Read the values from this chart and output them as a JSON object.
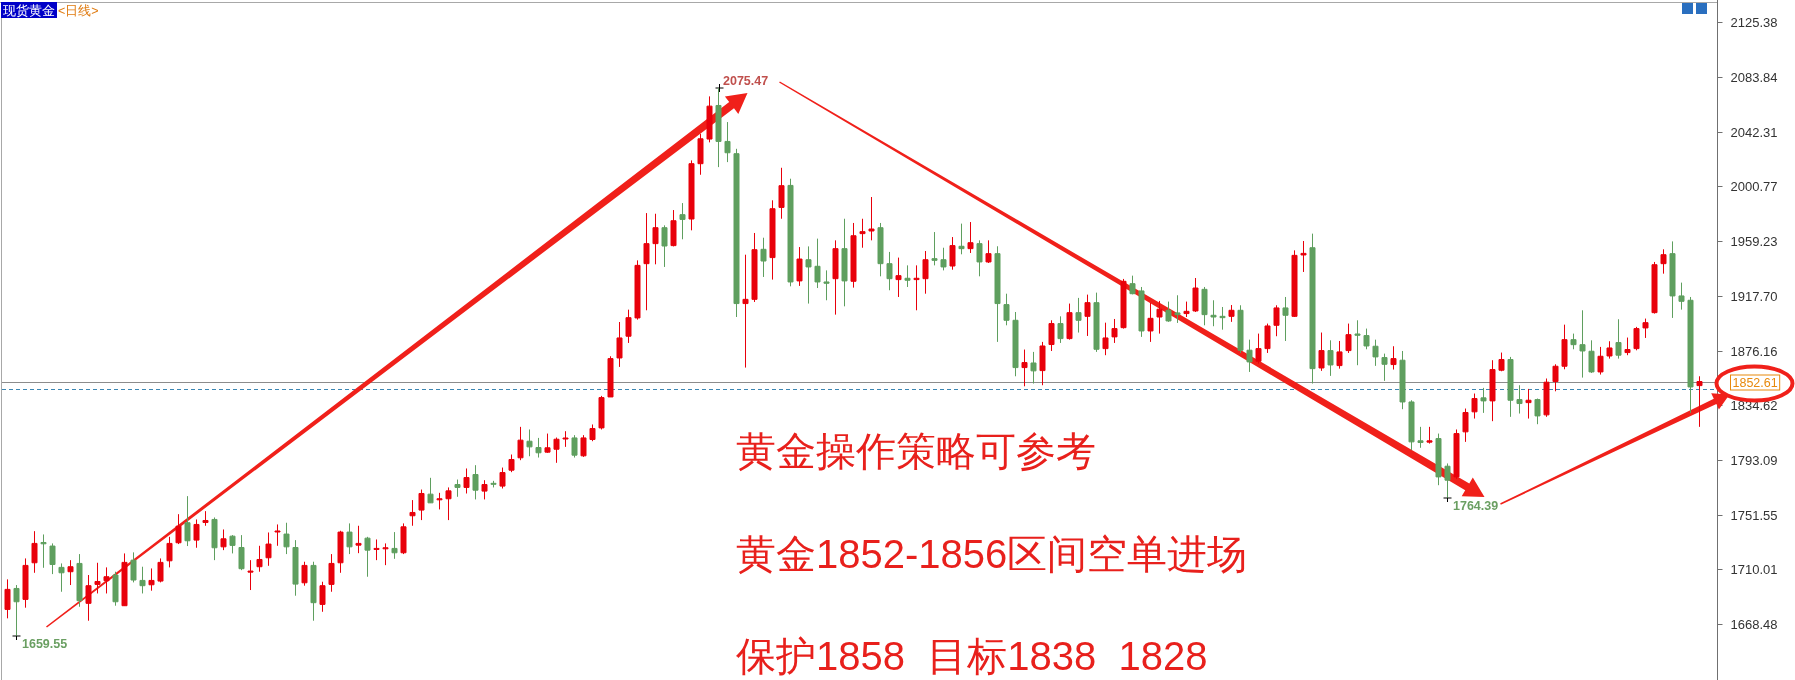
{
  "chart_data": {
    "type": "candlestick",
    "title": "现货黄金",
    "subtitle": "<日线>",
    "categories": [
      null,
      null,
      null,
      null,
      null,
      null,
      null,
      null,
      null,
      null,
      null,
      null,
      null,
      null,
      null,
      null,
      null,
      null,
      null,
      null,
      null,
      null,
      null,
      null,
      null,
      null,
      null,
      null,
      null,
      null,
      null,
      null,
      null,
      null,
      null,
      null,
      null,
      null,
      null,
      null,
      null,
      null,
      null,
      null,
      null,
      null,
      null,
      null,
      null,
      null,
      null,
      null,
      null,
      null,
      null,
      null,
      null,
      null,
      null,
      null,
      null,
      null,
      null,
      null,
      null,
      null,
      null,
      null,
      null,
      null,
      null,
      null,
      null,
      null,
      null,
      null,
      null,
      null,
      null,
      null,
      null,
      null,
      null,
      null,
      null,
      null,
      null,
      null,
      null,
      null,
      null,
      null,
      null,
      null,
      null,
      null,
      null,
      null,
      null,
      null,
      null,
      null,
      null,
      null,
      null,
      null,
      null,
      null,
      null,
      null,
      null,
      null,
      null,
      null,
      null,
      null,
      null,
      null,
      null,
      null,
      null,
      null,
      null,
      null,
      null,
      null,
      null,
      null,
      null,
      null,
      null,
      null,
      null,
      null,
      null,
      null,
      null,
      null,
      null,
      null,
      null,
      null,
      null,
      null,
      null,
      null,
      null,
      null,
      null,
      null,
      null,
      null,
      null,
      null,
      null,
      null,
      null,
      null,
      null,
      null,
      null,
      null,
      null,
      null,
      null,
      null,
      null,
      null,
      null,
      null,
      null,
      null,
      null,
      null,
      null,
      null,
      null,
      null,
      null,
      null,
      null,
      null,
      null,
      null,
      null,
      null,
      null,
      null,
      null
    ],
    "ohlc": [
      [
        1679.6,
        1702.4,
        1672.8,
        1694.8
      ],
      [
        1695.5,
        1698.1,
        1659.55,
        1685.4
      ],
      [
        1687.2,
        1718.3,
        1680.9,
        1713.0
      ],
      [
        1715.0,
        1739.0,
        1707.4,
        1729.7
      ],
      [
        1730.4,
        1736.5,
        1711.2,
        1729.4
      ],
      [
        1727.7,
        1729.7,
        1706.4,
        1713.7
      ],
      [
        1711.5,
        1714.5,
        1693.0,
        1707.4
      ],
      [
        1708.2,
        1717.0,
        1698.1,
        1712.0
      ],
      [
        1714.5,
        1721.6,
        1681.6,
        1686.2
      ],
      [
        1684.2,
        1705.7,
        1671.0,
        1697.6
      ],
      [
        1698.6,
        1715.0,
        1691.7,
        1700.8
      ],
      [
        1701.4,
        1711.5,
        1691.7,
        1704.4
      ],
      [
        1705.7,
        1708.2,
        1682.4,
        1685.4
      ],
      [
        1682.4,
        1722.1,
        1682.4,
        1715.3
      ],
      [
        1717.0,
        1722.9,
        1700.1,
        1701.9
      ],
      [
        1701.6,
        1712.0,
        1691.7,
        1697.6
      ],
      [
        1698.3,
        1710.7,
        1693.8,
        1701.6
      ],
      [
        1701.1,
        1718.3,
        1700.1,
        1715.3
      ],
      [
        1716.5,
        1734.7,
        1711.5,
        1729.7
      ],
      [
        1730.2,
        1751.9,
        1729.2,
        1742.8
      ],
      [
        1745.4,
        1765.6,
        1727.7,
        1731.7
      ],
      [
        1732.2,
        1747.9,
        1726.4,
        1744.1
      ],
      [
        1745.6,
        1754.2,
        1743.1,
        1747.1
      ],
      [
        1747.9,
        1749.4,
        1717.0,
        1726.4
      ],
      [
        1727.1,
        1740.3,
        1724.6,
        1733.2
      ],
      [
        1735.2,
        1736.0,
        1722.1,
        1728.2
      ],
      [
        1726.6,
        1736.0,
        1709.4,
        1710.5
      ],
      [
        1707.9,
        1717.0,
        1694.3,
        1708.7
      ],
      [
        1712.0,
        1727.9,
        1708.2,
        1717.5
      ],
      [
        1718.8,
        1738.0,
        1712.7,
        1729.2
      ],
      [
        1738.5,
        1744.1,
        1727.9,
        1739.0
      ],
      [
        1736.8,
        1745.4,
        1721.6,
        1727.1
      ],
      [
        1726.6,
        1732.2,
        1690.0,
        1698.8
      ],
      [
        1699.8,
        1715.8,
        1697.6,
        1713.0
      ],
      [
        1713.0,
        1715.8,
        1671.0,
        1684.7
      ],
      [
        1683.4,
        1700.6,
        1677.8,
        1697.6
      ],
      [
        1698.6,
        1721.6,
        1693.0,
        1714.5
      ],
      [
        1715.0,
        1739.3,
        1707.4,
        1738.3
      ],
      [
        1738.3,
        1744.9,
        1721.6,
        1727.1
      ],
      [
        1728.4,
        1743.1,
        1722.3,
        1729.7
      ],
      [
        1733.7,
        1734.7,
        1704.4,
        1724.6
      ],
      [
        1725.1,
        1732.7,
        1717.0,
        1725.9
      ],
      [
        1725.6,
        1729.7,
        1713.2,
        1726.4
      ],
      [
        1725.9,
        1738.3,
        1718.0,
        1722.6
      ],
      [
        1722.6,
        1744.9,
        1721.6,
        1742.3
      ],
      [
        1750.7,
        1762.6,
        1743.1,
        1753.2
      ],
      [
        1755.0,
        1770.6,
        1747.4,
        1767.6
      ],
      [
        1767.1,
        1779.5,
        1760.5,
        1760.5
      ],
      [
        1762.8,
        1768.1,
        1755.5,
        1763.6
      ],
      [
        1763.6,
        1772.2,
        1747.4,
        1769.6
      ],
      [
        1774.4,
        1778.2,
        1765.1,
        1772.2
      ],
      [
        1772.2,
        1786.6,
        1767.6,
        1779.7
      ],
      [
        1782.0,
        1789.1,
        1763.1,
        1770.1
      ],
      [
        1769.4,
        1777.7,
        1763.1,
        1774.4
      ],
      [
        1775.2,
        1777.2,
        1772.2,
        1774.7
      ],
      [
        1773.2,
        1787.3,
        1771.4,
        1783.5
      ],
      [
        1785.3,
        1797.2,
        1783.8,
        1793.4
      ],
      [
        1794.7,
        1818.2,
        1792.9,
        1808.1
      ],
      [
        1807.3,
        1816.2,
        1795.9,
        1803.0
      ],
      [
        1802.5,
        1809.8,
        1794.9,
        1798.5
      ],
      [
        1799.0,
        1813.1,
        1798.5,
        1802.3
      ],
      [
        1801.2,
        1810.1,
        1790.9,
        1808.8
      ],
      [
        1809.1,
        1814.9,
        1803.0,
        1809.6
      ],
      [
        1809.8,
        1811.9,
        1794.9,
        1796.7
      ],
      [
        1796.2,
        1811.9,
        1795.4,
        1809.8
      ],
      [
        1808.6,
        1820.0,
        1807.3,
        1816.9
      ],
      [
        1817.4,
        1841.7,
        1816.2,
        1840.4
      ],
      [
        1840.9,
        1871.8,
        1840.9,
        1870.0
      ],
      [
        1870.5,
        1897.8,
        1863.7,
        1885.7
      ],
      [
        1887.0,
        1907.2,
        1881.9,
        1901.1
      ],
      [
        1900.9,
        1944.6,
        1899.6,
        1940.8
      ],
      [
        1942.1,
        1980.5,
        1906.7,
        1957.3
      ],
      [
        1957.3,
        1980.0,
        1941.6,
        1969.4
      ],
      [
        1969.4,
        1971.2,
        1939.6,
        1955.5
      ],
      [
        1955.8,
        1982.8,
        1955.2,
        1974.7
      ],
      [
        1979.3,
        1988.1,
        1960.6,
        1975.7
      ],
      [
        1976.0,
        2020.5,
        1967.4,
        2018.0
      ],
      [
        2018.0,
        2040.7,
        2009.6,
        2036.9
      ],
      [
        2036.7,
        2069.1,
        2034.2,
        2061.7
      ],
      [
        2062.2,
        2075.47,
        2015.4,
        2034.9
      ],
      [
        2034.9,
        2049.6,
        2019.2,
        2026.3
      ],
      [
        2025.6,
        2029.3,
        1901.6,
        1911.8
      ],
      [
        1911.8,
        1948.9,
        1863.2,
        1915.0
      ],
      [
        1915.0,
        1965.4,
        1913.0,
        1952.7
      ],
      [
        1953.0,
        1961.8,
        1932.0,
        1944.1
      ],
      [
        1946.7,
        1990.2,
        1930.0,
        1983.8
      ],
      [
        1984.8,
        2014.9,
        1976.2,
        2001.3
      ],
      [
        2001.5,
        2006.6,
        1924.9,
        1928.2
      ],
      [
        1929.0,
        1954.7,
        1925.2,
        1945.6
      ],
      [
        1945.1,
        1955.2,
        1911.8,
        1939.6
      ],
      [
        1940.1,
        1961.1,
        1923.6,
        1928.2
      ],
      [
        1928.2,
        1937.0,
        1914.3,
        1927.2
      ],
      [
        1930.7,
        1959.8,
        1903.4,
        1953.5
      ],
      [
        1953.5,
        1976.2,
        1909.7,
        1929.0
      ],
      [
        1928.7,
        1973.0,
        1923.9,
        1963.3
      ],
      [
        1964.9,
        1976.2,
        1954.2,
        1966.4
      ],
      [
        1966.9,
        1992.7,
        1959.8,
        1968.4
      ],
      [
        1969.4,
        1973.0,
        1932.5,
        1942.1
      ],
      [
        1942.1,
        1951.0,
        1921.9,
        1930.7
      ],
      [
        1930.0,
        1946.7,
        1916.8,
        1933.0
      ],
      [
        1931.0,
        1940.8,
        1924.4,
        1929.5
      ],
      [
        1930.0,
        1940.8,
        1906.7,
        1931.0
      ],
      [
        1930.7,
        1951.7,
        1919.3,
        1945.1
      ],
      [
        1945.9,
        1966.1,
        1940.8,
        1944.6
      ],
      [
        1945.1,
        1954.2,
        1937.0,
        1939.6
      ],
      [
        1940.3,
        1962.3,
        1937.5,
        1955.8
      ],
      [
        1955.3,
        1972.5,
        1949.2,
        1953.5
      ],
      [
        1953.5,
        1973.7,
        1950.2,
        1958.0
      ],
      [
        1957.3,
        1959.8,
        1932.5,
        1943.4
      ],
      [
        1943.4,
        1959.8,
        1942.6,
        1949.7
      ],
      [
        1949.7,
        1955.3,
        1882.7,
        1911.8
      ],
      [
        1911.0,
        1919.3,
        1895.3,
        1899.1
      ],
      [
        1899.1,
        1905.4,
        1856.6,
        1863.2
      ],
      [
        1863.2,
        1876.9,
        1849.0,
        1867.0
      ],
      [
        1866.7,
        1875.1,
        1851.1,
        1860.7
      ],
      [
        1860.9,
        1882.7,
        1849.8,
        1879.6
      ],
      [
        1880.7,
        1899.1,
        1875.8,
        1896.6
      ],
      [
        1896.6,
        1902.1,
        1881.9,
        1885.2
      ],
      [
        1885.2,
        1911.8,
        1884.4,
        1904.9
      ],
      [
        1904.9,
        1916.1,
        1889.8,
        1899.1
      ],
      [
        1902.1,
        1918.6,
        1887.2,
        1912.5
      ],
      [
        1912.5,
        1920.1,
        1875.1,
        1877.1
      ],
      [
        1877.6,
        1897.3,
        1872.6,
        1885.7
      ],
      [
        1886.5,
        1900.1,
        1881.9,
        1892.8
      ],
      [
        1893.5,
        1930.5,
        1892.8,
        1928.7
      ],
      [
        1926.9,
        1933.0,
        1918.8,
        1919.3
      ],
      [
        1921.4,
        1924.4,
        1886.5,
        1891.0
      ],
      [
        1891.0,
        1912.3,
        1882.7,
        1900.6
      ],
      [
        1901.6,
        1913.8,
        1889.0,
        1907.5
      ],
      [
        1906.7,
        1913.3,
        1897.9,
        1898.6
      ],
      [
        1904.7,
        1918.1,
        1897.1,
        1903.4
      ],
      [
        1904.2,
        1913.3,
        1901.6,
        1905.9
      ],
      [
        1906.2,
        1931.2,
        1905.4,
        1923.6
      ],
      [
        1922.6,
        1924.4,
        1895.3,
        1903.4
      ],
      [
        1902.9,
        1914.3,
        1894.6,
        1901.6
      ],
      [
        1902.1,
        1909.2,
        1892.0,
        1901.1
      ],
      [
        1902.1,
        1910.7,
        1897.9,
        1906.7
      ],
      [
        1906.7,
        1910.5,
        1874.3,
        1876.4
      ],
      [
        1876.4,
        1884.4,
        1859.9,
        1867.5
      ],
      [
        1868.0,
        1889.0,
        1866.2,
        1877.6
      ],
      [
        1877.6,
        1896.6,
        1874.3,
        1894.8
      ],
      [
        1895.3,
        1910.5,
        1887.0,
        1908.5
      ],
      [
        1908.5,
        1916.8,
        1883.4,
        1902.9
      ],
      [
        1902.1,
        1952.2,
        1901.6,
        1948.4
      ],
      [
        1948.7,
        1959.3,
        1935.8,
        1949.9
      ],
      [
        1954.2,
        1964.9,
        1851.1,
        1862.4
      ],
      [
        1862.9,
        1889.8,
        1860.7,
        1876.1
      ],
      [
        1876.1,
        1883.9,
        1856.9,
        1865.2
      ],
      [
        1864.7,
        1883.4,
        1862.4,
        1875.1
      ],
      [
        1876.1,
        1896.6,
        1874.3,
        1888.2
      ],
      [
        1888.7,
        1899.1,
        1865.0,
        1887.7
      ],
      [
        1887.5,
        1892.8,
        1877.1,
        1879.6
      ],
      [
        1879.4,
        1884.4,
        1864.5,
        1871.3
      ],
      [
        1870.8,
        1873.8,
        1853.1,
        1865.7
      ],
      [
        1865.5,
        1879.4,
        1861.7,
        1870.0
      ],
      [
        1868.8,
        1875.8,
        1831.6,
        1837.1
      ],
      [
        1837.1,
        1838.4,
        1800.5,
        1806.8
      ],
      [
        1807.6,
        1818.2,
        1802.3,
        1806.3
      ],
      [
        1806.6,
        1818.2,
        1805.5,
        1807.6
      ],
      [
        1809.3,
        1813.1,
        1773.9,
        1780.2
      ],
      [
        1788.3,
        1790.4,
        1764.39,
        1777.7
      ],
      [
        1780.2,
        1816.2,
        1778.7,
        1813.1
      ],
      [
        1814.4,
        1832.1,
        1806.8,
        1829.1
      ],
      [
        1829.6,
        1843.5,
        1824.5,
        1839.7
      ],
      [
        1840.2,
        1847.8,
        1828.8,
        1837.9
      ],
      [
        1837.9,
        1868.8,
        1822.5,
        1861.7
      ],
      [
        1861.2,
        1874.6,
        1860.4,
        1869.3
      ],
      [
        1869.3,
        1871.3,
        1825.8,
        1838.4
      ],
      [
        1838.9,
        1849.8,
        1828.3,
        1835.9
      ],
      [
        1836.6,
        1847.0,
        1824.5,
        1838.4
      ],
      [
        1838.9,
        1839.7,
        1820.2,
        1826.5
      ],
      [
        1827.3,
        1854.9,
        1825.8,
        1852.1
      ],
      [
        1852.6,
        1865.7,
        1845.2,
        1864.2
      ],
      [
        1864.2,
        1895.8,
        1861.9,
        1884.4
      ],
      [
        1884.4,
        1889.0,
        1877.1,
        1880.6
      ],
      [
        1880.6,
        1906.7,
        1855.6,
        1875.8
      ],
      [
        1875.6,
        1883.9,
        1859.1,
        1859.9
      ],
      [
        1859.9,
        1878.9,
        1857.9,
        1871.8
      ],
      [
        1872.0,
        1883.2,
        1870.0,
        1878.1
      ],
      [
        1882.2,
        1899.9,
        1870.0,
        1872.6
      ],
      [
        1874.6,
        1886.0,
        1872.6,
        1876.9
      ],
      [
        1877.6,
        1894.1,
        1876.3,
        1892.8
      ],
      [
        1893.3,
        1900.4,
        1885.7,
        1897.3
      ],
      [
        1904.9,
        1943.4,
        1904.2,
        1941.3
      ],
      [
        1942.1,
        1953.0,
        1934.5,
        1948.9
      ],
      [
        1949.7,
        1959.0,
        1900.9,
        1917.6
      ],
      [
        1917.6,
        1927.7,
        1907.2,
        1913.5
      ],
      [
        1914.3,
        1916.8,
        1828.8,
        1848.5
      ],
      [
        1849.5,
        1856.6,
        1818.2,
        1852.61
      ]
    ],
    "colors": [
      "#e8000b",
      "#5f9f5f",
      "#e8000b",
      "#e8000b",
      "#5f9f5f",
      "#5f9f5f",
      "#5f9f5f",
      "#e8000b",
      "#5f9f5f",
      "#e8000b",
      "#e8000b",
      "#e8000b",
      "#5f9f5f",
      "#e8000b",
      "#5f9f5f",
      "#5f9f5f",
      "#e8000b",
      "#e8000b",
      "#e8000b",
      "#e8000b",
      "#5f9f5f",
      "#e8000b",
      "#e8000b",
      "#5f9f5f",
      "#e8000b",
      "#5f9f5f",
      "#5f9f5f",
      "#e8000b",
      "#e8000b",
      "#e8000b",
      "#e8000b",
      "#5f9f5f",
      "#5f9f5f",
      "#e8000b",
      "#5f9f5f",
      "#e8000b",
      "#e8000b",
      "#e8000b",
      "#5f9f5f",
      "#e8000b",
      "#5f9f5f",
      "#e8000b",
      "#e8000b",
      "#5f9f5f",
      "#e8000b",
      "#e8000b",
      "#e8000b",
      "#5f9f5f",
      "#e8000b",
      "#e8000b",
      "#5f9f5f",
      "#e8000b",
      "#5f9f5f",
      "#e8000b",
      "#5f9f5f",
      "#e8000b",
      "#e8000b",
      "#e8000b",
      "#5f9f5f",
      "#5f9f5f",
      "#e8000b",
      "#e8000b",
      "#e8000b",
      "#5f9f5f",
      "#e8000b",
      "#e8000b",
      "#e8000b",
      "#e8000b",
      "#e8000b",
      "#e8000b",
      "#e8000b",
      "#e8000b",
      "#e8000b",
      "#5f9f5f",
      "#e8000b",
      "#5f9f5f",
      "#e8000b",
      "#e8000b",
      "#e8000b",
      "#5f9f5f",
      "#5f9f5f",
      "#5f9f5f",
      "#e8000b",
      "#e8000b",
      "#5f9f5f",
      "#e8000b",
      "#e8000b",
      "#5f9f5f",
      "#e8000b",
      "#5f9f5f",
      "#5f9f5f",
      "#5f9f5f",
      "#e8000b",
      "#5f9f5f",
      "#e8000b",
      "#e8000b",
      "#e8000b",
      "#5f9f5f",
      "#5f9f5f",
      "#e8000b",
      "#5f9f5f",
      "#e8000b",
      "#e8000b",
      "#5f9f5f",
      "#5f9f5f",
      "#e8000b",
      "#5f9f5f",
      "#e8000b",
      "#5f9f5f",
      "#e8000b",
      "#5f9f5f",
      "#5f9f5f",
      "#5f9f5f",
      "#e8000b",
      "#5f9f5f",
      "#e8000b",
      "#e8000b",
      "#5f9f5f",
      "#e8000b",
      "#5f9f5f",
      "#e8000b",
      "#5f9f5f",
      "#e8000b",
      "#e8000b",
      "#e8000b",
      "#5f9f5f",
      "#5f9f5f",
      "#e8000b",
      "#e8000b",
      "#5f9f5f",
      "#5f9f5f",
      "#e8000b",
      "#e8000b",
      "#5f9f5f",
      "#5f9f5f",
      "#5f9f5f",
      "#e8000b",
      "#5f9f5f",
      "#5f9f5f",
      "#e8000b",
      "#e8000b",
      "#e8000b",
      "#5f9f5f",
      "#e8000b",
      "#e8000b",
      "#5f9f5f",
      "#e8000b",
      "#5f9f5f",
      "#e8000b",
      "#e8000b",
      "#5f9f5f",
      "#5f9f5f",
      "#5f9f5f",
      "#5f9f5f",
      "#e8000b",
      "#5f9f5f",
      "#5f9f5f",
      "#5f9f5f",
      "#e8000b",
      "#5f9f5f",
      "#5f9f5f",
      "#e8000b",
      "#e8000b",
      "#e8000b",
      "#5f9f5f",
      "#e8000b",
      "#e8000b",
      "#5f9f5f",
      "#5f9f5f",
      "#e8000b",
      "#5f9f5f",
      "#e8000b",
      "#e8000b",
      "#e8000b",
      "#5f9f5f",
      "#5f9f5f",
      "#5f9f5f",
      "#e8000b",
      "#e8000b",
      "#5f9f5f",
      "#e8000b",
      "#e8000b",
      "#e8000b",
      "#e8000b",
      "#e8000b",
      "#5f9f5f",
      "#5f9f5f",
      "#5f9f5f",
      "#e8000b"
    ],
    "ylim": [
      1626,
      2140
    ],
    "yticks": [
      2125.38,
      2083.84,
      2042.31,
      2000.77,
      1959.23,
      {
        "value": 1917.7,
        "label": "1917.70"
      },
      1876.16,
      1834.62,
      1793.09,
      1751.55,
      1710.01,
      1668.48
    ],
    "tick_labels": "y",
    "ref_lines": [
      {
        "axis": "y",
        "value": 1852.61,
        "label": "1852.61",
        "color": "#8c8c8c",
        "line_style": "solid"
      },
      {
        "axis": "y",
        "value": 1847.3,
        "color": "#3b86b3",
        "line_style": "dashed"
      }
    ],
    "annotations": [
      "1659.55",
      "2075.47",
      "1764.39",
      "黄金操作策略可参考",
      "黄金1852-1856区间空单进场",
      "保护1858  目标1838  1828"
    ]
  }
}
